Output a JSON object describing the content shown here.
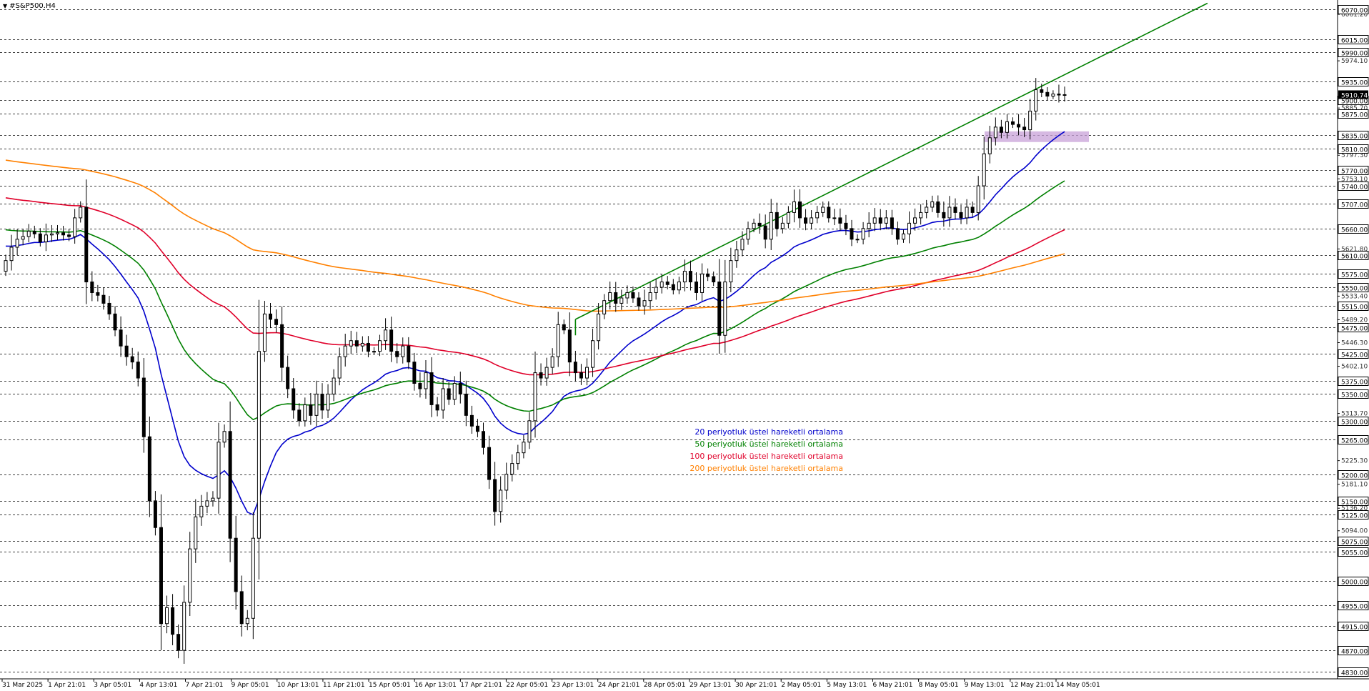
{
  "symbol_label": "#S&P500.H4",
  "colors": {
    "grid": "#000000",
    "candle": "#000000",
    "ema20": "#0000cc",
    "ema50": "#008000",
    "ema100": "#e0002a",
    "ema200": "#ff8000",
    "trendline": "#008000",
    "zone": "#c8a2d8"
  },
  "chart_data": {
    "type": "candlestick",
    "ylim": [
      4830,
      6080
    ],
    "price_levels": [
      "6070.00",
      "6015.00",
      "5990.00",
      "5935.00",
      "5900.00",
      "5875.00",
      "5835.00",
      "5810.00",
      "5770.00",
      "5740.00",
      "5707.00",
      "5660.00",
      "5610.00",
      "5575.00",
      "5550.00",
      "5515.00",
      "5475.00",
      "5425.00",
      "5375.00",
      "5350.00",
      "5300.00",
      "5265.00",
      "5200.00",
      "5150.00",
      "5125.00",
      "5075.00",
      "5055.00",
      "5000.00",
      "4955.00",
      "4915.00",
      "4870.00",
      "4830.00"
    ],
    "minor_levels": [
      "6061.20",
      "5974.10",
      "5885.70",
      "5797.30",
      "5753.10",
      "5621.80",
      "5533.40",
      "5489.20",
      "5446.30",
      "5402.10",
      "5313.70",
      "5225.30",
      "5181.10",
      "5136.20",
      "5094.00"
    ],
    "current_price": "5910.74",
    "x_labels": [
      "31 Mar 2025",
      "1 Apr 21:01",
      "3 Apr 05:01",
      "4 Apr 13:01",
      "7 Apr 21:01",
      "9 Apr 05:01",
      "10 Apr 13:01",
      "11 Apr 21:01",
      "15 Apr 05:01",
      "16 Apr 13:01",
      "17 Apr 21:01",
      "22 Apr 05:01",
      "23 Apr 13:01",
      "24 Apr 21:01",
      "28 Apr 05:01",
      "29 Apr 13:01",
      "30 Apr 21:01",
      "2 May 05:01",
      "5 May 13:01",
      "6 May 21:01",
      "8 May 05:01",
      "9 May 13:01",
      "12 May 21:01",
      "14 May 05:01"
    ],
    "legend": [
      {
        "label": "20 periyotluk üstel hareketli ortalama",
        "color": "#0000cc"
      },
      {
        "label": "50 periyotluk üstel hareketli ortalama",
        "color": "#008000"
      },
      {
        "label": "100 periyotluk üstel hareketli ortalama",
        "color": "#e0002a"
      },
      {
        "label": "200 periyotluk üstel hareketli ortalama",
        "color": "#ff8000"
      }
    ],
    "closes": [
      5600,
      5625,
      5640,
      5645,
      5655,
      5650,
      5635,
      5648,
      5650,
      5652,
      5648,
      5645,
      5680,
      5700,
      5560,
      5540,
      5535,
      5520,
      5500,
      5470,
      5440,
      5420,
      5410,
      5380,
      5270,
      5150,
      5100,
      4920,
      4950,
      4900,
      4870,
      4960,
      5060,
      5120,
      5140,
      5150,
      5155,
      5260,
      5280,
      5080,
      4980,
      4920,
      4930,
      5080,
      5430,
      5500,
      5490,
      5480,
      5400,
      5360,
      5320,
      5300,
      5330,
      5310,
      5350,
      5320,
      5350,
      5380,
      5420,
      5440,
      5450,
      5440,
      5445,
      5430,
      5430,
      5450,
      5470,
      5430,
      5420,
      5440,
      5410,
      5370,
      5360,
      5390,
      5330,
      5320,
      5360,
      5340,
      5370,
      5350,
      5310,
      5290,
      5280,
      5250,
      5190,
      5130,
      5170,
      5200,
      5220,
      5240,
      5260,
      5300,
      5390,
      5380,
      5400,
      5420,
      5480,
      5470,
      5410,
      5390,
      5380,
      5400,
      5450,
      5500,
      5525,
      5540,
      5520,
      5530,
      5540,
      5530,
      5515,
      5525,
      5540,
      5550,
      5560,
      5555,
      5545,
      5560,
      5580,
      5560,
      5540,
      5575,
      5570,
      5560,
      5460,
      5560,
      5600,
      5620,
      5640,
      5660,
      5670,
      5665,
      5640,
      5690,
      5660,
      5670,
      5690,
      5710,
      5680,
      5670,
      5680,
      5690,
      5700,
      5680,
      5680,
      5670,
      5660,
      5640,
      5640,
      5660,
      5670,
      5680,
      5670,
      5680,
      5660,
      5640,
      5650,
      5670,
      5680,
      5690,
      5700,
      5710,
      5690,
      5680,
      5700,
      5690,
      5680,
      5700,
      5690,
      5740,
      5800,
      5830,
      5850,
      5840,
      5860,
      5855,
      5850,
      5845,
      5880,
      5920,
      5915,
      5908,
      5912,
      5910,
      5910.74
    ]
  }
}
